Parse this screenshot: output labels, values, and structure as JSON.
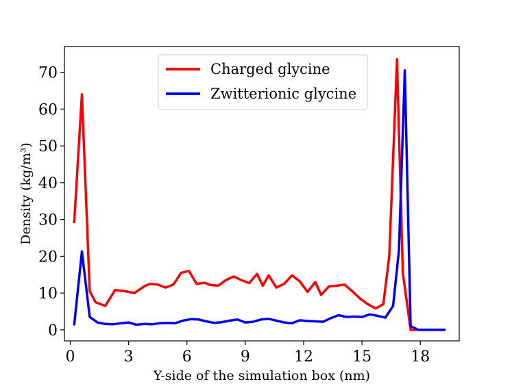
{
  "chart_data": {
    "type": "line",
    "title": "",
    "xlabel": "Y-side of the simulation box (nm)",
    "ylabel": "Density (kg/m³)",
    "xlim": [
      -0.3,
      20.0
    ],
    "ylim": [
      -3,
      77
    ],
    "xticks": [
      0,
      3,
      6,
      9,
      12,
      15,
      18
    ],
    "yticks": [
      0,
      10,
      20,
      30,
      40,
      50,
      60,
      70
    ],
    "legend_position": "top-center",
    "series": [
      {
        "name": "Charged glycine",
        "color": "#ff0000",
        "x": [
          0.2,
          0.6,
          1.0,
          1.3,
          1.8,
          2.3,
          2.8,
          3.3,
          3.8,
          4.1,
          4.5,
          4.9,
          5.3,
          5.7,
          6.1,
          6.5,
          6.9,
          7.2,
          7.6,
          8.0,
          8.4,
          8.8,
          9.2,
          9.6,
          9.9,
          10.2,
          10.6,
          11.0,
          11.4,
          11.8,
          12.2,
          12.6,
          12.9,
          13.3,
          13.7,
          14.1,
          14.5,
          14.9,
          15.3,
          15.7,
          16.1,
          16.4,
          16.8,
          17.1,
          17.5,
          17.9,
          18.5,
          19.3
        ],
        "y": [
          29.0,
          64.0,
          10.5,
          7.5,
          6.5,
          10.8,
          10.5,
          10.0,
          11.8,
          12.5,
          12.3,
          11.5,
          12.3,
          15.5,
          16.0,
          12.5,
          12.8,
          12.2,
          12.0,
          13.5,
          14.5,
          13.5,
          12.7,
          15.2,
          12.0,
          14.8,
          11.5,
          12.5,
          14.8,
          13.2,
          10.3,
          13.0,
          9.5,
          11.8,
          12.0,
          12.3,
          10.5,
          8.5,
          7.0,
          5.8,
          7.0,
          20.0,
          73.5,
          15.5,
          0.0,
          0.0,
          0.0,
          0.0
        ]
      },
      {
        "name": "Zwitterionic glycine",
        "color": "#0000ff",
        "x": [
          0.2,
          0.6,
          1.0,
          1.4,
          1.8,
          2.2,
          2.6,
          3.0,
          3.4,
          3.8,
          4.2,
          4.6,
          5.0,
          5.4,
          5.8,
          6.2,
          6.6,
          7.0,
          7.4,
          7.8,
          8.2,
          8.6,
          9.0,
          9.4,
          9.8,
          10.2,
          10.6,
          11.0,
          11.4,
          11.8,
          12.2,
          12.6,
          13.0,
          13.4,
          13.8,
          14.2,
          14.6,
          15.0,
          15.4,
          15.8,
          16.2,
          16.6,
          16.9,
          17.2,
          17.5,
          17.9,
          18.5,
          19.3
        ],
        "y": [
          1.2,
          21.3,
          3.5,
          2.0,
          1.6,
          1.5,
          1.8,
          2.0,
          1.4,
          1.6,
          1.5,
          1.8,
          1.9,
          1.8,
          2.5,
          2.9,
          2.8,
          2.3,
          1.9,
          2.1,
          2.5,
          2.8,
          2.0,
          2.2,
          2.8,
          3.0,
          2.5,
          2.0,
          1.8,
          2.6,
          2.4,
          2.3,
          2.2,
          3.2,
          4.0,
          3.5,
          3.6,
          3.5,
          4.2,
          3.8,
          3.3,
          6.5,
          21.5,
          70.5,
          1.0,
          0.0,
          0.0,
          0.0
        ]
      }
    ]
  }
}
